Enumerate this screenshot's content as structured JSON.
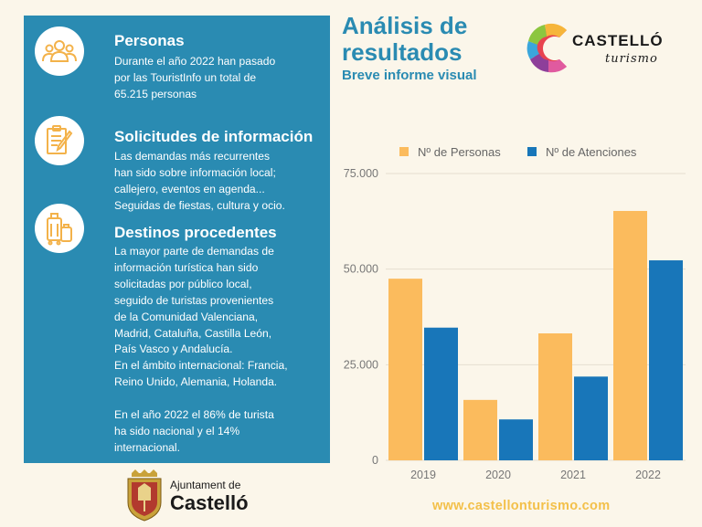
{
  "panel": {
    "sections": [
      {
        "title": "Personas",
        "icon": "group-icon",
        "lines": [
          "Durante el año 2022 han pasado",
          "por las TouristInfo un total de",
          "65.215 personas"
        ]
      },
      {
        "title": "Solicitudes de información",
        "icon": "clipboard-icon",
        "lines": [
          "Las demandas más recurrentes",
          "han sido sobre información local;",
          "callejero, eventos en agenda...",
          "Seguidas de fiestas, cultura y ocio."
        ]
      },
      {
        "title": "Destinos procedentes",
        "icon": "luggage-icon",
        "lines": [
          "La mayor parte de demandas de",
          "información turística han sido",
          "solicitadas por público local,",
          "seguido de turistas provenientes",
          "de la Comunidad Valenciana,",
          "Madrid, Cataluña, Castilla León,",
          "País Vasco y Andalucía.",
          "En el ámbito internacional: Francia,",
          "Reino Unido, Alemania, Holanda."
        ],
        "extra_lines": [
          "En el año 2022 el 86% de turista",
          "ha sido nacional y el 14%",
          "internacional."
        ]
      }
    ]
  },
  "header": {
    "title_line1": "Análisis de",
    "title_line2": "resultados",
    "subtitle": "Breve informe visual"
  },
  "logos": {
    "castello_wordmark": "CASTELLÓ",
    "castello_tagline": "turismo",
    "ajuntament_line1": "Ajuntament de",
    "ajuntament_line2": "Castelló"
  },
  "footer": {
    "website": "www.castellonturismo.com"
  },
  "colors": {
    "panel": "#2a8bb2",
    "personas": "#fbbb5d",
    "atenciones": "#1876b9",
    "accent": "#f3c04a"
  },
  "chart_data": {
    "type": "bar",
    "categories": [
      "2019",
      "2020",
      "2021",
      "2022"
    ],
    "series": [
      {
        "name": "Nº de Personas",
        "color": "#fbbb5d",
        "values": [
          47500,
          15800,
          33200,
          65215
        ]
      },
      {
        "name": "Nº de Atenciones",
        "color": "#1876b9",
        "values": [
          34700,
          10700,
          21900,
          52300
        ]
      }
    ],
    "yticks": [
      "0",
      "25.000",
      "50.000",
      "75.000"
    ],
    "ytick_values": [
      0,
      25000,
      50000,
      75000
    ],
    "ylim": [
      0,
      75000
    ],
    "grid": true,
    "legend": "top"
  }
}
